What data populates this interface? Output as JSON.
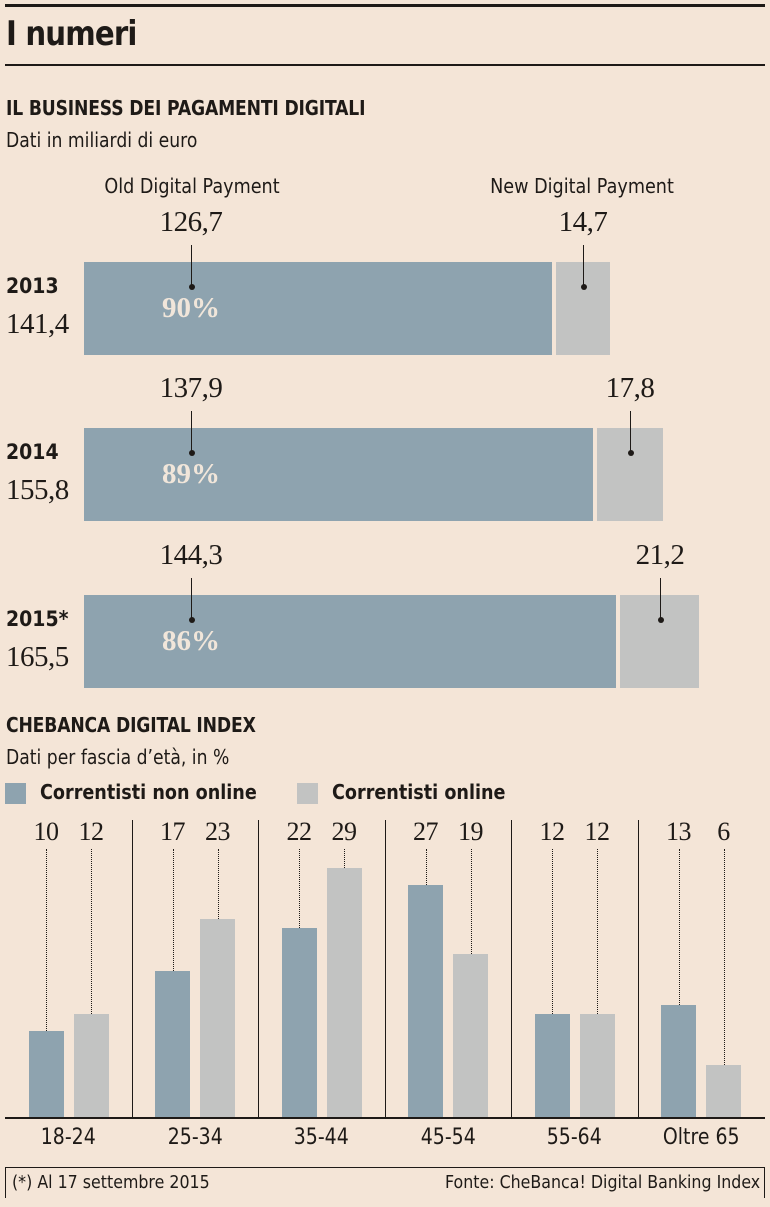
{
  "header": {
    "title": "I numeri"
  },
  "colors": {
    "background": "#f4e5d7",
    "old_digital": "#8ea3af",
    "new_digital": "#c2c3c2",
    "non_online": "#8ea3af",
    "online": "#c2c3c2",
    "ink": "#1e1a17",
    "pct_text": "#f1e6da"
  },
  "chart_data": [
    {
      "type": "bar",
      "orientation": "horizontal-stacked",
      "title": "IL BUSINESS DEI PAGAMENTI DIGITALI",
      "subtitle": "Dati in miliardi di euro",
      "series_labels": [
        "Old Digital Payment",
        "New Digital Payment"
      ],
      "rows": [
        {
          "year": "2013",
          "total": "141,4",
          "old": 126.7,
          "old_label": "126,7",
          "new": 14.7,
          "new_label": "14,7",
          "old_pct": "90%"
        },
        {
          "year": "2014",
          "total": "155,8",
          "old": 137.9,
          "old_label": "137,9",
          "new": 17.8,
          "new_label": "17,8",
          "old_pct": "89%"
        },
        {
          "year": "2015*",
          "total": "165,5",
          "old": 144.3,
          "old_label": "144,3",
          "new": 21.2,
          "new_label": "21,2",
          "old_pct": "86%"
        }
      ]
    },
    {
      "type": "bar",
      "title": "CHEBANCA DIGITAL INDEX",
      "subtitle": "Dati per fascia d’età, in %",
      "categories": [
        "18-24",
        "25-34",
        "35-44",
        "45-54",
        "55-64",
        "Oltre 65"
      ],
      "series": [
        {
          "name": "Correntisti non online",
          "values": [
            10,
            17,
            22,
            27,
            12,
            13
          ]
        },
        {
          "name": "Correntisti online",
          "values": [
            12,
            23,
            29,
            19,
            12,
            6
          ]
        }
      ],
      "ylim": [
        0,
        34
      ],
      "grid": false,
      "legend": "top-left"
    }
  ],
  "footer": {
    "note": "(*) Al 17 settembre 2015",
    "source": "Fonte: CheBanca! Digital Banking Index"
  }
}
